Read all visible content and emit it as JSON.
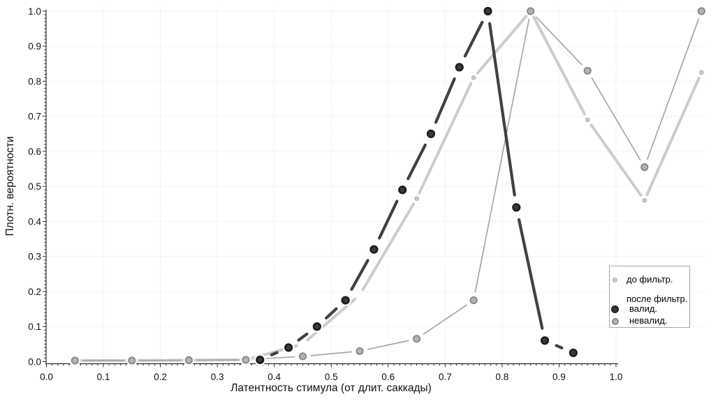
{
  "page": {
    "background": "#ffffff"
  },
  "chart_data": {
    "type": "line",
    "title": "",
    "xlabel": "Латентность стимула (от длит. саккады)",
    "ylabel": "Плотн. вероятности",
    "xlim": [
      0.0,
      1.0
    ],
    "x_extent": [
      0.0,
      1.16
    ],
    "ylim": [
      0.0,
      1.0
    ],
    "x_tick_labels": [
      "0.0",
      "0.1",
      "0.2",
      "0.3",
      "0.4",
      "0.5",
      "0.6",
      "0.7",
      "0.8",
      "0.9",
      "1.0"
    ],
    "y_tick_labels": [
      "0.0",
      "0.1",
      "0.2",
      "0.3",
      "0.4",
      "0.5",
      "0.6",
      "0.7",
      "0.8",
      "0.9",
      "1.0"
    ],
    "minor_tick_step": 0.01,
    "grid": {
      "style": "dotted",
      "color": "#d4d4d4"
    },
    "axis_color": "#2b2b2b",
    "tick_label_color": "#111111",
    "legend_position": "right-middle",
    "series": [
      {
        "id": "pre_filter",
        "name": "до фильтр.",
        "x": [
          0.05,
          0.15,
          0.25,
          0.35,
          0.45,
          0.55,
          0.65,
          0.75,
          0.85,
          0.95,
          1.05,
          1.15
        ],
        "y": [
          0.003,
          0.003,
          0.004,
          0.005,
          0.05,
          0.19,
          0.465,
          0.81,
          1.0,
          0.69,
          0.46,
          0.825
        ],
        "marker_visible": [
          true,
          true,
          true,
          true,
          false,
          false,
          true,
          true,
          true,
          true,
          true,
          true
        ],
        "line_color": "#cccccc",
        "line_width": 4,
        "marker_radius": 2.7,
        "marker_fill": "#cecece",
        "marker_stroke": "#b0b0b0",
        "marker_stroke_width": 1.2,
        "halo_radius": 5.2,
        "trim": 9
      },
      {
        "id": "post_filter_invalid",
        "name": "невалид.",
        "x": [
          0.05,
          0.15,
          0.25,
          0.35,
          0.45,
          0.55,
          0.65,
          0.75,
          0.85,
          0.95,
          1.05,
          1.15
        ],
        "y": [
          0.003,
          0.003,
          0.004,
          0.005,
          0.015,
          0.03,
          0.065,
          0.175,
          1.0,
          0.83,
          0.555,
          1.0
        ],
        "marker_visible": [
          true,
          true,
          true,
          true,
          true,
          true,
          true,
          true,
          true,
          true,
          true,
          true
        ],
        "line_color": "#a6a6a6",
        "line_width": 1.7,
        "marker_radius": 4.6,
        "marker_fill": "#b4b4b4",
        "marker_stroke": "#8a8a8a",
        "marker_stroke_width": 2,
        "halo_radius": 8,
        "trim": 12
      },
      {
        "id": "post_filter_valid",
        "name": "валид.",
        "x": [
          0.375,
          0.425,
          0.475,
          0.525,
          0.575,
          0.625,
          0.675,
          0.725,
          0.775,
          0.825,
          0.875,
          0.925
        ],
        "y": [
          0.005,
          0.04,
          0.1,
          0.175,
          0.32,
          0.49,
          0.65,
          0.84,
          1.0,
          0.44,
          0.06,
          0.025
        ],
        "marker_visible": [
          true,
          true,
          true,
          true,
          true,
          true,
          true,
          true,
          true,
          true,
          true,
          true
        ],
        "line_color": "#414141",
        "line_width": 4.2,
        "marker_radius": 4.8,
        "marker_fill": "#3a3a3a",
        "marker_stroke": "#1c1c1c",
        "marker_stroke_width": 2.6,
        "halo_radius": 8.5,
        "trim": 18
      }
    ]
  },
  "legend": {
    "pre_label": "до фильтр.",
    "post_header": "после фильтр.",
    "valid_label": "валид.",
    "invalid_label": "невалид."
  }
}
